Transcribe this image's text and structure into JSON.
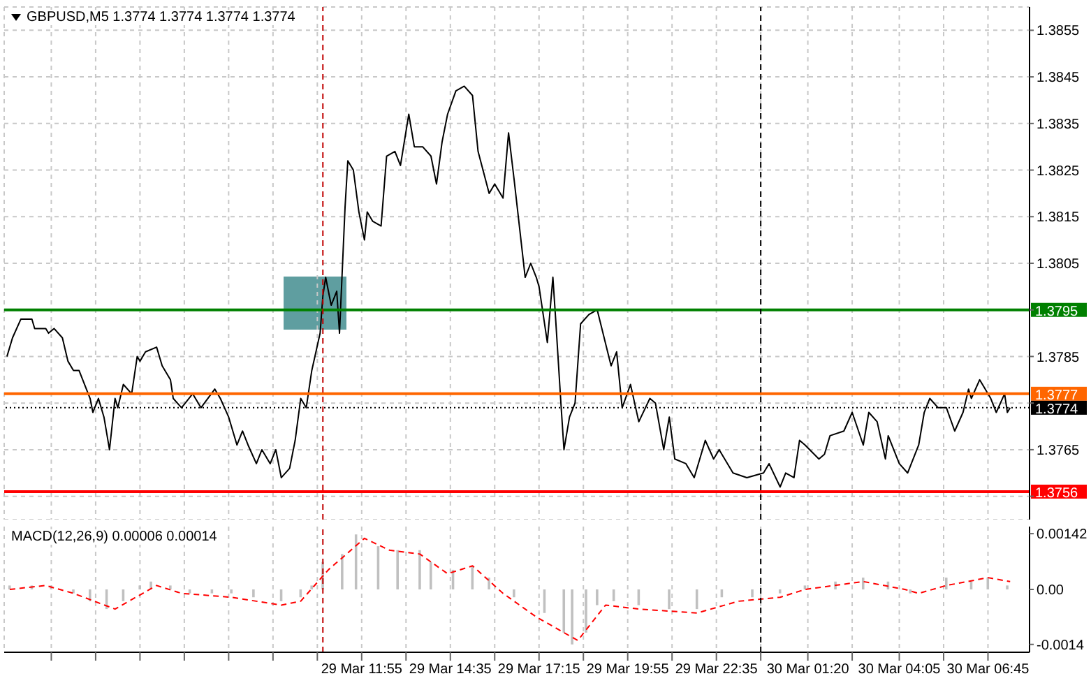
{
  "chart_data": [
    {
      "type": "line",
      "title": "GBPUSD,M5 1.3774 1.3774 1.3774 1.3774",
      "x": [
        "--03-29T01:15",
        "--03-29T01:25",
        "--03-29T01:40",
        "--03-29T02:00",
        "--03-29T02:05",
        "--03-29T02:25",
        "--03-29T02:30",
        "--03-29T02:40",
        "--03-29T02:55",
        "--03-29T03:05",
        "--03-29T03:15",
        "--03-29T03:25",
        "--03-29T03:45",
        "--03-29T03:50",
        "--03-29T04:00",
        "--03-29T04:10",
        "--03-29T04:20",
        "--03-29T04:30",
        "--03-29T04:35",
        "--03-29T04:45",
        "--03-29T05:00",
        "--03-29T05:10",
        "--03-29T05:15",
        "--03-29T05:25",
        "--03-29T05:45",
        "--03-29T05:55",
        "--03-29T06:10",
        "--03-29T06:15",
        "--03-29T06:30",
        "--03-29T06:50",
        "--03-29T07:05",
        "--03-29T07:30",
        "--03-29T07:40",
        "--03-29T07:55",
        "--03-29T08:10",
        "--03-29T08:20",
        "--03-29T08:30",
        "--03-29T08:45",
        "--03-29T08:55",
        "--03-29T09:10",
        "--03-29T09:20",
        "--03-29T09:30",
        "--03-29T09:45",
        "--03-29T09:55",
        "--03-29T10:05",
        "--03-29T10:15",
        "--03-29T10:25",
        "--03-29T10:40",
        "--03-29T10:45",
        "--03-29T10:50",
        "--03-29T11:00",
        "--03-29T11:10",
        "--03-29T11:15",
        "--03-29T11:25",
        "--03-29T11:30",
        "--03-29T11:40",
        "--03-29T11:50",
        "--03-29T12:00",
        "--03-29T12:05",
        "--03-29T12:15",
        "--03-29T12:30",
        "--03-29T12:40",
        "--03-29T12:55",
        "--03-29T13:05",
        "--03-29T13:20",
        "--03-29T13:30",
        "--03-29T13:45",
        "--03-29T14:00",
        "--03-29T14:10",
        "--03-29T14:20",
        "--03-29T14:30",
        "--03-29T14:45",
        "--03-29T15:00",
        "--03-29T15:15",
        "--03-29T15:25",
        "--03-29T15:45",
        "--03-29T15:55",
        "--03-29T16:10",
        "--03-29T16:20",
        "--03-29T16:30",
        "--03-29T16:50",
        "--03-29T17:00",
        "--03-29T17:10",
        "--03-29T17:15",
        "--03-29T17:30",
        "--03-29T17:40",
        "--03-29T17:45",
        "--03-29T17:55",
        "--03-29T18:00",
        "--03-29T18:10",
        "--03-29T18:20",
        "--03-29T18:30",
        "--03-29T18:45",
        "--03-29T19:00",
        "--03-29T19:25",
        "--03-29T19:35",
        "--03-29T19:45",
        "--03-29T20:00",
        "--03-29T20:15",
        "--03-29T20:35",
        "--03-29T20:45",
        "--03-29T21:00",
        "--03-29T21:10",
        "--03-29T21:20",
        "--03-29T21:40",
        "--03-29T21:55",
        "--03-29T22:15",
        "--03-29T22:30",
        "--03-29T22:40",
        "--03-29T23:05",
        "--03-29T23:30",
        "--03-30T00:00",
        "--03-30T00:10",
        "--03-30T00:30",
        "--03-30T00:40",
        "--03-30T00:55",
        "--03-30T01:05",
        "--03-30T01:15",
        "--03-30T01:40",
        "--03-30T01:50",
        "--03-30T02:00",
        "--03-30T02:25",
        "--03-30T02:40",
        "--03-30T03:00",
        "--03-30T03:10",
        "--03-30T03:25",
        "--03-30T03:40",
        "--03-30T03:45",
        "--03-30T04:05",
        "--03-30T04:20",
        "--03-30T04:40",
        "--03-30T04:50",
        "--03-30T05:00",
        "--03-30T05:15",
        "--03-30T05:30",
        "--03-30T05:45",
        "--03-30T06:00",
        "--03-30T06:10",
        "--03-30T06:15",
        "--03-30T06:30",
        "--03-30T06:45",
        "--03-30T06:50",
        "--03-30T07:00",
        "--03-30T07:15",
        "--03-30T07:20",
        "--03-30T07:25"
      ],
      "series": [
        {
          "color": "#000000",
          "values": [
            1.3785,
            1.3789,
            1.3793,
            1.3793,
            1.3791,
            1.3791,
            1.379,
            1.3791,
            1.3789,
            1.3784,
            1.3782,
            1.3782,
            1.3776,
            1.3773,
            1.3776,
            1.3772,
            1.3765,
            1.3776,
            1.3774,
            1.3779,
            1.3777,
            1.3785,
            1.3784,
            1.3786,
            1.3787,
            1.3783,
            1.378,
            1.3776,
            1.3774,
            1.3777,
            1.3774,
            1.3778,
            1.3776,
            1.3772,
            1.3766,
            1.3769,
            1.3766,
            1.3762,
            1.3765,
            1.3762,
            1.3765,
            1.3759,
            1.3761,
            1.3767,
            1.3776,
            1.3774,
            1.3782,
            1.379,
            1.3798,
            1.3802,
            1.3796,
            1.3799,
            1.379,
            1.3817,
            1.3827,
            1.3825,
            1.3816,
            1.381,
            1.3816,
            1.3814,
            1.3813,
            1.3828,
            1.3829,
            1.3826,
            1.3837,
            1.383,
            1.383,
            1.3828,
            1.3822,
            1.3831,
            1.3837,
            1.3842,
            1.3843,
            1.3841,
            1.3829,
            1.382,
            1.3822,
            1.3819,
            1.3833,
            1.3823,
            1.3802,
            1.3805,
            1.3802,
            1.38,
            1.3788,
            1.3802,
            1.3793,
            1.3774,
            1.3765,
            1.3772,
            1.3775,
            1.3792,
            1.3794,
            1.3795,
            1.3783,
            1.3786,
            1.3774,
            1.3779,
            1.3771,
            1.3776,
            1.3775,
            1.3765,
            1.3772,
            1.3763,
            1.3762,
            1.3759,
            1.3767,
            1.3763,
            1.3765,
            1.376,
            1.3759,
            1.376,
            1.3762,
            1.3757,
            1.376,
            1.3759,
            1.3767,
            1.3766,
            1.3763,
            1.3764,
            1.3768,
            1.3769,
            1.3773,
            1.3766,
            1.3773,
            1.3771,
            1.3763,
            1.3768,
            1.3762,
            1.376,
            1.3766,
            1.3773,
            1.3776,
            1.3774,
            1.3774,
            1.3769,
            1.3773,
            1.3778,
            1.3776,
            1.378,
            1.3777,
            1.3776,
            1.3773,
            1.3777,
            1.3773,
            1.3774
          ]
        }
      ],
      "xlim": [
        "--03-29T01:10",
        "--03-30T08:00"
      ],
      "xticks": [
        {
          "value": "--03-29T02:35",
          "label": null
        },
        {
          "value": "--03-29T03:55",
          "label": null
        },
        {
          "value": "--03-29T05:15",
          "label": null
        },
        {
          "value": "--03-29T06:35",
          "label": null
        },
        {
          "value": "--03-29T07:55",
          "label": null
        },
        {
          "value": "--03-29T09:15",
          "label": null
        },
        {
          "value": "--03-29T10:35",
          "label": null
        },
        {
          "value": "--03-29T11:55",
          "label": null
        },
        {
          "value": "--03-29T13:15",
          "label": null
        },
        {
          "value": "--03-29T14:35",
          "label": null
        },
        {
          "value": "--03-29T15:55",
          "label": null
        },
        {
          "value": "--03-29T17:15",
          "label": null
        },
        {
          "value": "--03-29T18:35",
          "label": null
        },
        {
          "value": "--03-29T19:55",
          "label": null
        },
        {
          "value": "--03-29T21:15",
          "label": null
        },
        {
          "value": "--03-29T22:35",
          "label": null
        },
        {
          "value": "--03-29T23:55",
          "label": null
        },
        {
          "value": "--03-30T01:20",
          "label": null
        },
        {
          "value": "--03-30T02:40",
          "label": null
        },
        {
          "value": "--03-30T04:05",
          "label": null
        },
        {
          "value": "--03-30T05:25",
          "label": null
        },
        {
          "value": "--03-30T06:45",
          "label": null
        }
      ],
      "ylim": [
        1.375,
        1.386
      ],
      "yticks": [
        1.3855,
        1.3845,
        1.3835,
        1.3825,
        1.3815,
        1.3805,
        {
          "value": 1.3795,
          "label": null
        },
        1.3785,
        {
          "value": 1.3775,
          "label": null
        },
        1.3765,
        {
          "value": 1.3755,
          "label": null
        }
      ],
      "grid": true,
      "tick_labels": "y",
      "marker": "none",
      "line_style": "solid",
      "ref_lines": [
        {
          "axis": "y",
          "value": 1.3795,
          "label": "1.3795",
          "color": "#008000"
        },
        {
          "axis": "y",
          "value": 1.3777,
          "label": "1.3777",
          "color": "#ff6600"
        },
        {
          "axis": "y",
          "value": 1.3774,
          "label": "1.3774",
          "color": "#000000",
          "line_style": "dotted"
        },
        {
          "axis": "y",
          "value": 1.3756,
          "label": "1.3756",
          "color": "#ff0000"
        },
        {
          "axis": "x",
          "value": "--03-29T10:45",
          "color": "#c00000",
          "line_style": "dashed"
        },
        {
          "axis": "x",
          "value": "--03-29T23:55",
          "color": "#000000",
          "line_style": "dashed"
        }
      ]
    },
    {
      "type": "bar",
      "title": "MACD(12,26,9) 0.00006 0.00014",
      "series": [
        {
          "color": "#c0c0c0",
          "x": [
            "--03-29T01:20",
            "--03-29T02:00",
            "--03-29T02:35",
            "--03-29T03:15",
            "--03-29T03:45",
            "--03-29T04:15",
            "--03-29T04:45",
            "--03-29T05:15",
            "--03-29T05:35",
            "--03-29T06:10",
            "--03-29T06:45",
            "--03-29T07:25",
            "--03-29T08:00",
            "--03-29T08:40",
            "--03-29T09:30",
            "--03-29T10:05",
            "--03-29T10:25",
            "--03-29T10:45",
            "--03-29T11:20",
            "--03-29T11:45",
            "--03-29T12:25",
            "--03-29T13:00",
            "--03-29T13:40",
            "--03-29T14:00",
            "--03-29T14:40",
            "--03-29T15:15",
            "--03-29T15:45",
            "--03-29T16:10",
            "--03-29T16:30",
            "--03-29T17:25",
            "--03-29T18:00",
            "--03-29T18:15",
            "--03-29T18:40",
            "--03-29T19:00",
            "--03-29T19:30",
            "--03-29T20:15",
            "--03-29T21:10",
            "--03-29T22:00",
            "--03-29T22:45",
            "--03-29T23:40",
            "--03-30T00:30",
            "--03-30T01:15",
            "--03-30T02:10",
            "--03-30T03:00",
            "--03-30T03:45",
            "--03-30T04:25",
            "--03-30T04:50",
            "--03-30T05:30",
            "--03-30T06:15",
            "--03-30T06:45",
            "--03-30T07:20"
          ],
          "values": [
            0.0001,
            0.0001,
            0.0001,
            -0.0001,
            -0.0003,
            -0.0005,
            -0.0003,
            0.0001,
            0.0002,
            0.0001,
            -0.0001,
            -0.0001,
            -0.0001,
            -0.0002,
            -0.0003,
            -0.0002,
            0.0001,
            0.0007,
            0.0009,
            0.0014,
            0.0011,
            0.001,
            0.001,
            0.0007,
            0.0005,
            0.0006,
            0.0003,
            0,
            -0.0002,
            -0.0006,
            -0.0011,
            -0.0014,
            -0.0011,
            -0.0004,
            -0.0003,
            -0.0004,
            -0.0005,
            -0.0005,
            -0.0002,
            -0.0002,
            -0.0001,
            0.0001,
            0.0002,
            0.0003,
            0.0002,
            -0.0001,
            0,
            0.0003,
            0.0002,
            0.0003,
            0.0001
          ]
        },
        {
          "type": "line",
          "color": "#ff0000",
          "line_style": "dashed",
          "x": [
            "--03-29T01:20",
            "--03-29T02:25",
            "--03-29T03:15",
            "--03-29T04:30",
            "--03-29T05:45",
            "--03-29T06:30",
            "--03-29T08:00",
            "--03-29T09:30",
            "--03-29T10:05",
            "--03-29T10:55",
            "--03-29T12:00",
            "--03-29T12:45",
            "--03-29T13:40",
            "--03-29T14:30",
            "--03-29T15:15",
            "--03-29T16:10",
            "--03-29T17:10",
            "--03-29T18:25",
            "--03-29T19:15",
            "--03-29T20:15",
            "--03-29T22:00",
            "--03-29T23:15",
            "--03-30T00:30",
            "--03-30T01:15",
            "--03-30T03:00",
            "--03-30T04:15",
            "--03-30T04:40",
            "--03-30T05:30",
            "--03-30T06:45",
            "--03-30T07:25"
          ],
          "values": [
            0,
            0.0001,
            -0.0001,
            -0.0005,
            0.0001,
            -0.0001,
            -0.0002,
            -0.0004,
            -0.0003,
            0.0005,
            0.0013,
            0.001,
            0.0009,
            0.0004,
            0.0006,
            -0.0001,
            -0.0007,
            -0.0013,
            -0.0004,
            -0.0005,
            -0.0006,
            -0.0003,
            -0.0002,
            0,
            0.0002,
            0,
            -0.0001,
            0.0001,
            0.0003,
            0.0002
          ]
        }
      ],
      "xlim": [
        "--03-29T01:10",
        "--03-30T08:00"
      ],
      "xticks": [
        {
          "value": "--03-29T02:35",
          "label": null
        },
        {
          "value": "--03-29T03:55",
          "label": null
        },
        {
          "value": "--03-29T05:15",
          "label": null
        },
        {
          "value": "--03-29T06:35",
          "label": null
        },
        {
          "value": "--03-29T07:55",
          "label": null
        },
        {
          "value": "--03-29T09:15",
          "label": null
        },
        {
          "value": "--03-29T10:35",
          "label": null
        },
        {
          "value": "--03-29T11:55",
          "label": "29 Mar 11:55"
        },
        {
          "value": "--03-29T13:15",
          "label": null
        },
        {
          "value": "--03-29T14:35",
          "label": "29 Mar 14:35"
        },
        {
          "value": "--03-29T15:55",
          "label": null
        },
        {
          "value": "--03-29T17:15",
          "label": "29 Mar 17:15"
        },
        {
          "value": "--03-29T18:35",
          "label": null
        },
        {
          "value": "--03-29T19:55",
          "label": "29 Mar 19:55"
        },
        {
          "value": "--03-29T21:15",
          "label": null
        },
        {
          "value": "--03-29T22:35",
          "label": "29 Mar 22:35"
        },
        {
          "value": "--03-29T23:55",
          "label": null
        },
        {
          "value": "--03-30T01:20",
          "label": "30 Mar 01:20"
        },
        {
          "value": "--03-30T02:40",
          "label": null
        },
        {
          "value": "--03-30T04:05",
          "label": "30 Mar 04:05"
        },
        {
          "value": "--03-30T05:25",
          "label": null
        },
        {
          "value": "--03-30T06:45",
          "label": "30 Mar 06:45"
        }
      ],
      "ylim": [
        -0.0016,
        0.0016
      ],
      "yticks": [
        0.00142,
        {
          "value": 0,
          "label": "0.00"
        },
        -0.0014
      ],
      "grid": "x",
      "marker": "none",
      "ref_lines": [
        {
          "axis": "x",
          "value": "--03-29T10:45",
          "color": "#c00000",
          "line_style": "dashed"
        },
        {
          "axis": "x",
          "value": "--03-29T23:55",
          "color": "#000000",
          "line_style": "dashed"
        }
      ]
    }
  ]
}
